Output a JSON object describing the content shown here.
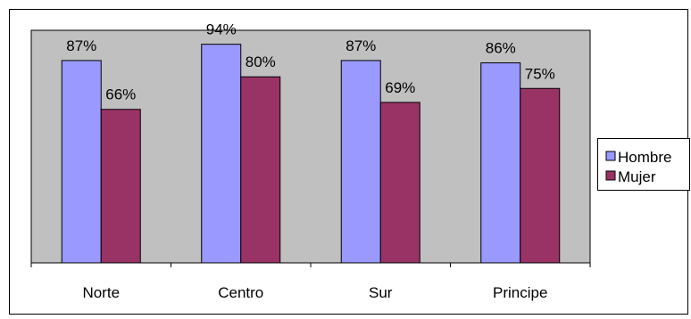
{
  "chart_data": {
    "type": "bar",
    "categories": [
      "Norte",
      "Centro",
      "Sur",
      "Principe"
    ],
    "series": [
      {
        "name": "Hombre",
        "values": [
          87,
          94,
          87,
          86
        ],
        "labels": [
          "87%",
          "94%",
          "87%",
          "86%"
        ],
        "color": "#9999ff"
      },
      {
        "name": "Mujer",
        "values": [
          66,
          80,
          69,
          75
        ],
        "labels": [
          "66%",
          "80%",
          "69%",
          "75%"
        ],
        "color": "#993366"
      }
    ],
    "ylim": [
      0,
      100
    ],
    "grid": false,
    "legend": "right",
    "plot_background": "#c0c0c0"
  }
}
